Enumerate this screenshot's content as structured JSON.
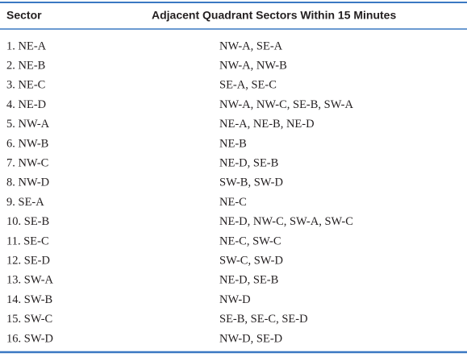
{
  "table": {
    "header": [
      "Sector",
      "Adjacent Quadrant Sectors Within 15 Minutes"
    ],
    "rows": [
      [
        "1. NE-A",
        "NW-A, SE-A"
      ],
      [
        "2. NE-B",
        "NW-A, NW-B"
      ],
      [
        "3. NE-C",
        "SE-A, SE-C"
      ],
      [
        "4. NE-D",
        "NW-A, NW-C, SE-B, SW-A"
      ],
      [
        "5. NW-A",
        "NE-A, NE-B, NE-D"
      ],
      [
        "6. NW-B",
        "NE-B"
      ],
      [
        "7. NW-C",
        "NE-D, SE-B"
      ],
      [
        "8. NW-D",
        "SW-B, SW-D"
      ],
      [
        "9. SE-A",
        "NE-C"
      ],
      [
        "10. SE-B",
        "NE-D, NW-C, SW-A, SW-C"
      ],
      [
        "11. SE-C",
        "NE-C, SW-C"
      ],
      [
        "12. SE-D",
        "SW-C, SW-D"
      ],
      [
        "13. SW-A",
        "NE-D, SE-B"
      ],
      [
        "14. SW-B",
        "NW-D"
      ],
      [
        "15. SW-C",
        "SE-B, SE-C, SE-D"
      ],
      [
        "16. SW-D",
        "NW-D, SE-D"
      ]
    ]
  }
}
